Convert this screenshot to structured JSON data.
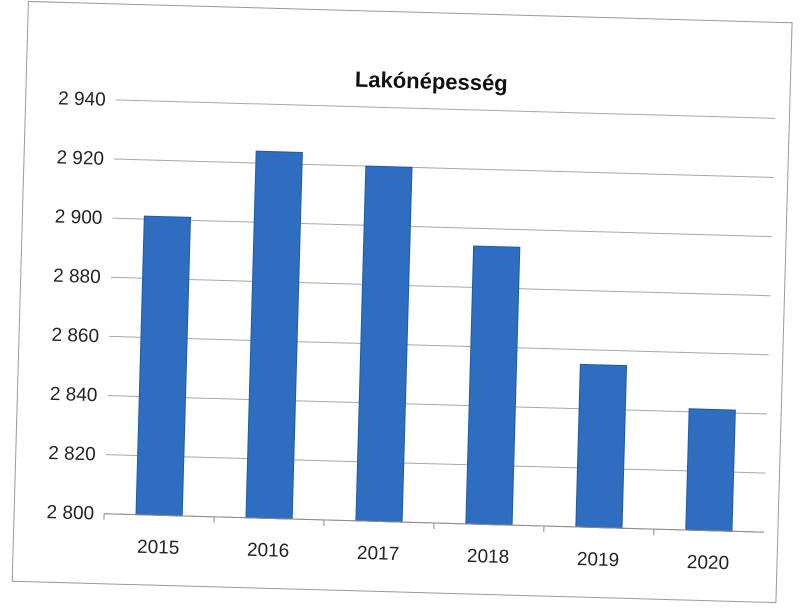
{
  "chart_data": {
    "type": "bar",
    "title": "Lakónépesség",
    "xlabel": "",
    "ylabel": "",
    "categories": [
      "2015",
      "2016",
      "2017",
      "2018",
      "2019",
      "2020"
    ],
    "series": [
      {
        "values": [
          2901,
          2924,
          2920,
          2894,
          2855,
          2841
        ]
      }
    ],
    "ylim": [
      2800,
      2940
    ],
    "yticks": [
      2800,
      2820,
      2840,
      2860,
      2880,
      2900,
      2920,
      2940
    ],
    "ytick_labels": [
      "2 800",
      "2 820",
      "2 840",
      "2 860",
      "2 880",
      "2 900",
      "2 920",
      "2 940"
    ],
    "grid": true,
    "legend": "none",
    "colors": {
      "bar": "#2e6dc0",
      "grid": "#a8a8a8"
    }
  }
}
